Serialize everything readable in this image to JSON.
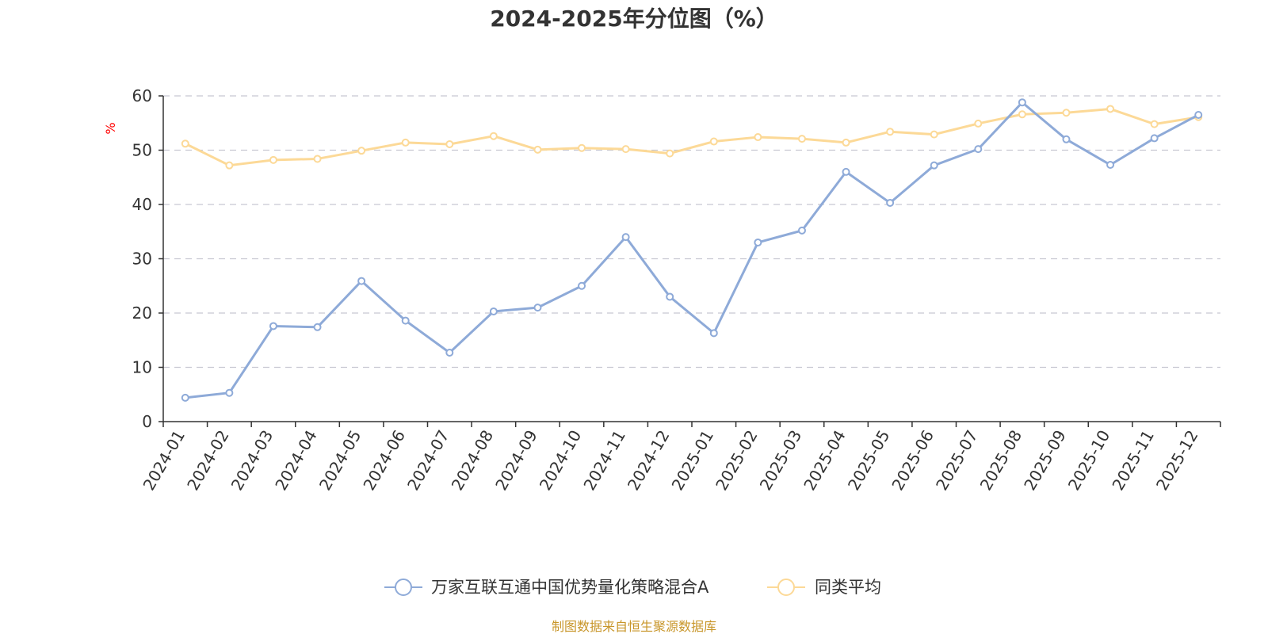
{
  "chart_data": {
    "type": "line",
    "title": "2024-2025年分位图（%）",
    "ylabel": "%",
    "xlabel": "",
    "ylim": [
      0,
      60
    ],
    "yticks": [
      0,
      10,
      20,
      30,
      40,
      50,
      60
    ],
    "grid": "horizontal dashed",
    "legend_position": "bottom-center",
    "categories": [
      "2024-01",
      "2024-02",
      "2024-03",
      "2024-04",
      "2024-05",
      "2024-06",
      "2024-07",
      "2024-08",
      "2024-09",
      "2024-10",
      "2024-11",
      "2024-12",
      "2025-01",
      "2025-02",
      "2025-03",
      "2025-04",
      "2025-05",
      "2025-06",
      "2025-07",
      "2025-08",
      "2025-09",
      "2025-10",
      "2025-11",
      "2025-12"
    ],
    "series": [
      {
        "name": "万家互联互通中国优势量化策略混合A",
        "color": "#8eaad8",
        "values": [
          4.4,
          5.3,
          17.6,
          17.4,
          25.9,
          18.6,
          12.7,
          20.3,
          21.0,
          25.0,
          34.0,
          23.0,
          16.3,
          33.0,
          35.2,
          46.0,
          40.3,
          47.2,
          50.2,
          58.8,
          52.0,
          47.3,
          52.2,
          56.5
        ]
      },
      {
        "name": "同类平均",
        "color": "#fcd997",
        "values": [
          51.2,
          47.2,
          48.2,
          48.4,
          49.9,
          51.4,
          51.1,
          52.6,
          50.1,
          50.4,
          50.2,
          49.4,
          51.6,
          52.4,
          52.1,
          51.4,
          53.4,
          52.9,
          54.9,
          56.6,
          56.9,
          57.6,
          54.8,
          56.1
        ]
      }
    ]
  },
  "source": "制图数据来自恒生聚源数据库",
  "colors": {
    "ylabel": "#ff0000",
    "source": "#c8962a",
    "axis": "#333333",
    "grid": "#c8c8d2"
  }
}
